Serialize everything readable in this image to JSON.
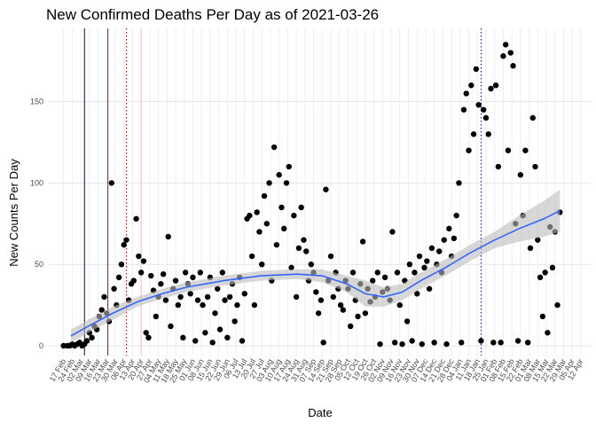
{
  "chart_data": {
    "type": "scatter",
    "title": "New Confirmed Deaths Per Day as of 2021-03-26",
    "x_label": "Date",
    "y_label": "New Counts Per Day",
    "xlim": [
      -12,
      428
    ],
    "ylim": [
      -6,
      195
    ],
    "yticks": [
      0,
      50,
      100,
      150
    ],
    "xticks": [
      {
        "value": 0,
        "label": "17 Feb"
      },
      {
        "value": 7,
        "label": "24 Feb"
      },
      {
        "value": 14,
        "label": "02 Mar"
      },
      {
        "value": 21,
        "label": "09 Mar"
      },
      {
        "value": 28,
        "label": "16 Mar"
      },
      {
        "value": 35,
        "label": "23 Mar"
      },
      {
        "value": 42,
        "label": "30 Mar"
      },
      {
        "value": 49,
        "label": "06 Apr"
      },
      {
        "value": 56,
        "label": "13 Apr"
      },
      {
        "value": 63,
        "label": "20 Apr"
      },
      {
        "value": 70,
        "label": "27 Apr"
      },
      {
        "value": 77,
        "label": "04 May"
      },
      {
        "value": 84,
        "label": "11 May"
      },
      {
        "value": 91,
        "label": "18 May"
      },
      {
        "value": 98,
        "label": "25 May"
      },
      {
        "value": 105,
        "label": "01 Jun"
      },
      {
        "value": 112,
        "label": "08 Jun"
      },
      {
        "value": 119,
        "label": "15 Jun"
      },
      {
        "value": 126,
        "label": "22 Jun"
      },
      {
        "value": 133,
        "label": "29 Jun"
      },
      {
        "value": 140,
        "label": "06 Jul"
      },
      {
        "value": 147,
        "label": "13 Jul"
      },
      {
        "value": 154,
        "label": "20 Jul"
      },
      {
        "value": 161,
        "label": "27 Jul"
      },
      {
        "value": 168,
        "label": "03 Aug"
      },
      {
        "value": 175,
        "label": "10 Aug"
      },
      {
        "value": 182,
        "label": "17 Aug"
      },
      {
        "value": 189,
        "label": "24 Aug"
      },
      {
        "value": 196,
        "label": "31 Aug"
      },
      {
        "value": 203,
        "label": "07 Sep"
      },
      {
        "value": 210,
        "label": "14 Sep"
      },
      {
        "value": 217,
        "label": "21 Sep"
      },
      {
        "value": 224,
        "label": "28 Sep"
      },
      {
        "value": 231,
        "label": "05 Oct"
      },
      {
        "value": 238,
        "label": "12 Oct"
      },
      {
        "value": 245,
        "label": "19 Oct"
      },
      {
        "value": 252,
        "label": "26 Oct"
      },
      {
        "value": 259,
        "label": "02 Nov"
      },
      {
        "value": 266,
        "label": "09 Nov"
      },
      {
        "value": 273,
        "label": "16 Nov"
      },
      {
        "value": 280,
        "label": "23 Nov"
      },
      {
        "value": 287,
        "label": "30 Nov"
      },
      {
        "value": 294,
        "label": "07 Dec"
      },
      {
        "value": 301,
        "label": "14 Dec"
      },
      {
        "value": 308,
        "label": "21 Dec"
      },
      {
        "value": 315,
        "label": "28 Dec"
      },
      {
        "value": 322,
        "label": "04 Jan"
      },
      {
        "value": 329,
        "label": "11 Jan"
      },
      {
        "value": 336,
        "label": "18 Jan"
      },
      {
        "value": 343,
        "label": "25 Jan"
      },
      {
        "value": 350,
        "label": "01 Feb"
      },
      {
        "value": 357,
        "label": "08 Feb"
      },
      {
        "value": 364,
        "label": "15 Feb"
      },
      {
        "value": 371,
        "label": "22 Feb"
      },
      {
        "value": 378,
        "label": "01 Mar"
      },
      {
        "value": 385,
        "label": "08 Mar"
      },
      {
        "value": 392,
        "label": "15 Mar"
      },
      {
        "value": 399,
        "label": "22 Mar"
      },
      {
        "value": 406,
        "label": "29 Mar"
      },
      {
        "value": 413,
        "label": "05 Apr"
      },
      {
        "value": 420,
        "label": "12 Apr"
      }
    ],
    "grid": true,
    "x": [
      0,
      3,
      5,
      7,
      9,
      11,
      13,
      15,
      17,
      19,
      21,
      23,
      25,
      27,
      29,
      31,
      33,
      35,
      37,
      39,
      41,
      43,
      45,
      47,
      49,
      51,
      53,
      55,
      57,
      59,
      61,
      63,
      65,
      67,
      69,
      71,
      73,
      75,
      77,
      79,
      81,
      83,
      85,
      87,
      89,
      91,
      93,
      95,
      97,
      99,
      101,
      103,
      105,
      107,
      109,
      111,
      113,
      115,
      117,
      119,
      121,
      123,
      125,
      127,
      129,
      131,
      133,
      135,
      137,
      139,
      141,
      143,
      145,
      147,
      149,
      151,
      153,
      155,
      157,
      159,
      161,
      163,
      165,
      167,
      169,
      171,
      173,
      175,
      177,
      179,
      181,
      183,
      185,
      187,
      189,
      191,
      193,
      195,
      197,
      199,
      201,
      203,
      205,
      207,
      209,
      211,
      213,
      215,
      217,
      219,
      221,
      223,
      225,
      227,
      229,
      231,
      233,
      235,
      237,
      239,
      241,
      243,
      245,
      247,
      249,
      251,
      253,
      255,
      257,
      259,
      261,
      263,
      265,
      267,
      269,
      271,
      273,
      275,
      277,
      279,
      281,
      283,
      285,
      287,
      289,
      291,
      293,
      295,
      297,
      299,
      301,
      303,
      305,
      307,
      309,
      311,
      313,
      315,
      317,
      319,
      321,
      323,
      325,
      327,
      329,
      331,
      333,
      335,
      337,
      339,
      341,
      343,
      345,
      347,
      349,
      351,
      353,
      355,
      357,
      359,
      361,
      363,
      365,
      367,
      369,
      371,
      373,
      375,
      377,
      379,
      381,
      383,
      385,
      387,
      389,
      391,
      393,
      395,
      397,
      399,
      401,
      403
    ],
    "series": [
      {
        "color": "#000000",
        "values": [
          0,
          0,
          0,
          1,
          0,
          1,
          2,
          0,
          1,
          3,
          8,
          5,
          12,
          10,
          18,
          22,
          30,
          20,
          15,
          100,
          35,
          25,
          42,
          50,
          62,
          65,
          28,
          38,
          40,
          78,
          55,
          45,
          52,
          8,
          5,
          43,
          34,
          18,
          30,
          38,
          44,
          28,
          67,
          12,
          35,
          40,
          25,
          30,
          5,
          45,
          38,
          32,
          42,
          3,
          28,
          45,
          25,
          8,
          30,
          42,
          2,
          20,
          35,
          10,
          45,
          28,
          5,
          30,
          38,
          15,
          25,
          42,
          3,
          32,
          78,
          80,
          55,
          25,
          82,
          70,
          50,
          92,
          75,
          100,
          40,
          122,
          62,
          105,
          85,
          72,
          100,
          110,
          48,
          80,
          30,
          60,
          85,
          65,
          58,
          40,
          50,
          45,
          33,
          20,
          28,
          2,
          96,
          40,
          55,
          30,
          45,
          35,
          25,
          22,
          40,
          35,
          12,
          45,
          28,
          18,
          38,
          64,
          20,
          35,
          27,
          40,
          30,
          45,
          1,
          33,
          42,
          35,
          28,
          70,
          2,
          45,
          25,
          1,
          40,
          15,
          50,
          3,
          45,
          32,
          55,
          1,
          48,
          52,
          35,
          60,
          2,
          50,
          58,
          45,
          65,
          1,
          72,
          55,
          66,
          80,
          100,
          2,
          145,
          155,
          120,
          160,
          130,
          170,
          148,
          3,
          145,
          140,
          130,
          158,
          2,
          160,
          110,
          2,
          178,
          185,
          120,
          180,
          172,
          75,
          3,
          105,
          80,
          120,
          2,
          60,
          140,
          110,
          65,
          42,
          18,
          45,
          8,
          73,
          48,
          70,
          25,
          82
        ]
      }
    ],
    "trend": {
      "color": "#3366ff",
      "band_color": "#bdbdbd",
      "x": [
        6,
        20,
        40,
        60,
        80,
        100,
        130,
        160,
        190,
        210,
        230,
        245,
        260,
        275,
        290,
        310,
        330,
        350,
        370,
        390,
        403
      ],
      "y": [
        6,
        12,
        20,
        27,
        32,
        36,
        40,
        43,
        44,
        43,
        38,
        32,
        30,
        33,
        40,
        48,
        57,
        65,
        72,
        78,
        83
      ],
      "lower": [
        2,
        8,
        16,
        24,
        29,
        33,
        37,
        40,
        41,
        39,
        33,
        24,
        24,
        28,
        35,
        43,
        52,
        60,
        64,
        67,
        70
      ],
      "upper": [
        10,
        16,
        24,
        30,
        35,
        39,
        43,
        46,
        47,
        47,
        43,
        40,
        36,
        38,
        45,
        53,
        62,
        70,
        80,
        89,
        96
      ]
    },
    "vlines": [
      {
        "x": 17,
        "color": "#000080",
        "dash": "solid"
      },
      {
        "x": 36,
        "color": "#cc0000",
        "dash": "solid"
      },
      {
        "x": 51,
        "color": "#cc0000",
        "dash": "dotted"
      },
      {
        "x": 63,
        "color": "#ffb6c1",
        "dash": "solid"
      },
      {
        "x": 339,
        "color": "#000080",
        "dash": "dotted"
      }
    ]
  }
}
